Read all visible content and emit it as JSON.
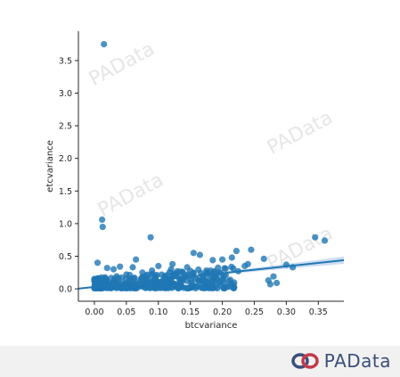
{
  "chart_data": {
    "type": "scatter",
    "title": "",
    "xlabel": "btcvariance",
    "ylabel": "etcvariance",
    "xlim": [
      -0.025,
      0.39
    ],
    "ylim": [
      -0.19,
      3.95
    ],
    "xticks": [
      0.0,
      0.05,
      0.1,
      0.15,
      0.2,
      0.25,
      0.3,
      0.35
    ],
    "xtick_labels": [
      "0.00",
      "0.05",
      "0.10",
      "0.15",
      "0.20",
      "0.25",
      "0.30",
      "0.35"
    ],
    "yticks": [
      0.0,
      0.5,
      1.0,
      1.5,
      2.0,
      2.5,
      3.0,
      3.5
    ],
    "ytick_labels": [
      "0.0",
      "0.5",
      "1.0",
      "1.5",
      "2.0",
      "2.5",
      "3.0",
      "3.5"
    ],
    "grid": false,
    "point_color": "#1f77b4",
    "line_color": "#1f77b4",
    "band_color": "#aec7e8",
    "series": [
      {
        "points": [
          [
            0.015,
            3.75
          ],
          [
            0.012,
            1.06
          ],
          [
            0.013,
            0.95
          ],
          [
            0.088,
            0.79
          ],
          [
            0.345,
            0.79
          ],
          [
            0.36,
            0.74
          ],
          [
            0.005,
            0.4
          ],
          [
            0.245,
            0.6
          ],
          [
            0.222,
            0.58
          ],
          [
            0.155,
            0.55
          ],
          [
            0.165,
            0.52
          ],
          [
            0.215,
            0.48
          ],
          [
            0.265,
            0.46
          ],
          [
            0.2,
            0.45
          ],
          [
            0.065,
            0.45
          ],
          [
            0.185,
            0.44
          ],
          [
            0.122,
            0.38
          ],
          [
            0.24,
            0.38
          ],
          [
            0.3,
            0.37
          ],
          [
            0.235,
            0.35
          ],
          [
            0.31,
            0.33
          ],
          [
            0.205,
            0.31
          ],
          [
            0.175,
            0.28
          ],
          [
            0.12,
            0.3
          ],
          [
            0.225,
            0.27
          ],
          [
            0.195,
            0.25
          ],
          [
            0.28,
            0.19
          ],
          [
            0.272,
            0.13
          ],
          [
            0.285,
            0.09
          ],
          [
            0.275,
            0.07
          ],
          [
            0.21,
            0.12
          ],
          [
            0.185,
            0.1
          ],
          [
            0.17,
            0.13
          ],
          [
            0.06,
            0.33
          ],
          [
            0.04,
            0.34
          ],
          [
            0.03,
            0.3
          ],
          [
            0.02,
            0.32
          ],
          [
            0.09,
            0.28
          ],
          [
            0.1,
            0.35
          ],
          [
            0.145,
            0.33
          ],
          [
            0.13,
            0.27
          ],
          [
            0.075,
            0.25
          ],
          [
            0.05,
            0.22
          ],
          [
            0.155,
            0.24
          ],
          [
            0.08,
            0.2
          ]
        ],
        "cluster": {
          "x_range": [
            0.0,
            0.22
          ],
          "y_range": [
            0.0,
            0.28
          ],
          "count": 380
        }
      }
    ],
    "regression": {
      "intercept": 0.03,
      "slope": 1.05,
      "x_range": [
        -0.025,
        0.39
      ],
      "ci_halfwidth_end": 0.05
    }
  },
  "watermark": {
    "text": "PAData"
  },
  "footer": {
    "brand_name": "PAData"
  }
}
